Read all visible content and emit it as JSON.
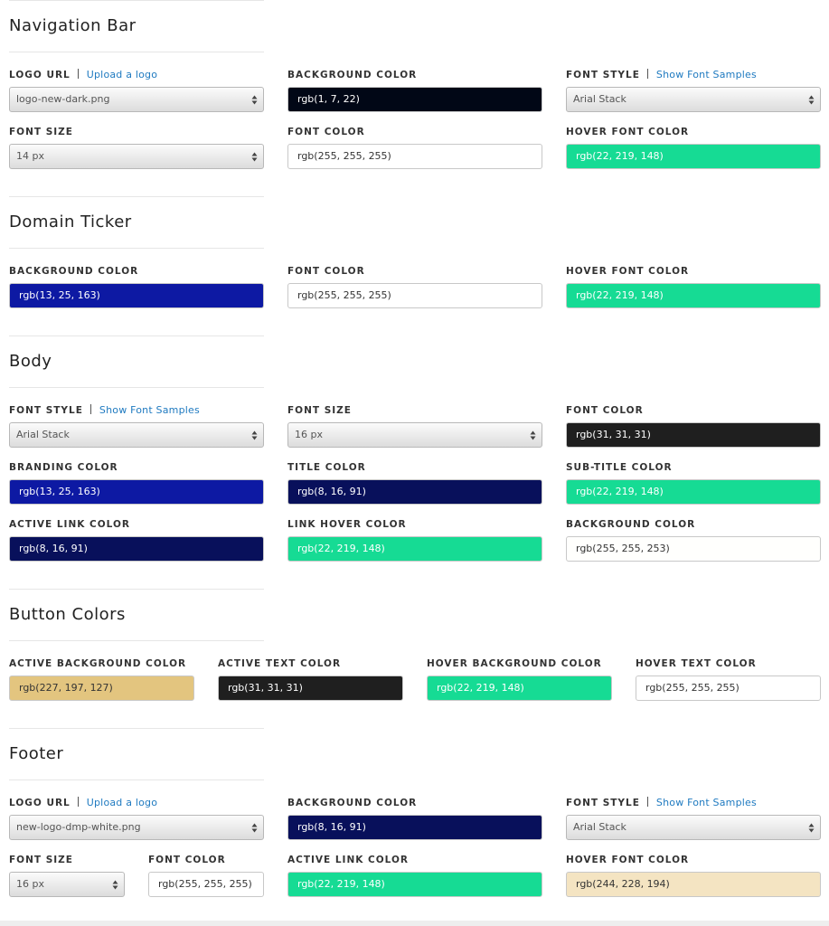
{
  "sections": [
    {
      "title": "Navigation Bar",
      "rows": [
        [
          {
            "label": "LOGO URL",
            "link": "Upload a logo",
            "type": "select",
            "value": "logo-new-dark.png"
          },
          {
            "label": "BACKGROUND COLOR",
            "type": "color",
            "value": "rgb(1, 7, 22)"
          },
          {
            "label": "FONT STYLE",
            "link": "Show Font Samples",
            "type": "select",
            "value": "Arial Stack"
          }
        ],
        [
          {
            "label": "FONT SIZE",
            "type": "select",
            "value": "14 px"
          },
          {
            "label": "FONT COLOR",
            "type": "color",
            "value": "rgb(255, 255, 255)"
          },
          {
            "label": "HOVER FONT COLOR",
            "type": "color",
            "value": "rgb(22, 219, 148)"
          }
        ]
      ]
    },
    {
      "title": "Domain Ticker",
      "rows": [
        [
          {
            "label": "BACKGROUND COLOR",
            "type": "color",
            "value": "rgb(13, 25, 163)"
          },
          {
            "label": "FONT COLOR",
            "type": "color",
            "value": "rgb(255, 255, 255)"
          },
          {
            "label": "HOVER FONT COLOR",
            "type": "color",
            "value": "rgb(22, 219, 148)"
          }
        ]
      ]
    },
    {
      "title": "Body",
      "rows": [
        [
          {
            "label": "FONT STYLE",
            "link": "Show Font Samples",
            "type": "select",
            "value": "Arial Stack"
          },
          {
            "label": "FONT SIZE",
            "type": "select",
            "value": "16 px"
          },
          {
            "label": "FONT COLOR",
            "type": "color",
            "value": "rgb(31, 31, 31)"
          }
        ],
        [
          {
            "label": "BRANDING COLOR",
            "type": "color",
            "value": "rgb(13, 25, 163)"
          },
          {
            "label": "TITLE COLOR",
            "type": "color",
            "value": "rgb(8, 16, 91)"
          },
          {
            "label": "SUB-TITLE COLOR",
            "type": "color",
            "value": "rgb(22, 219, 148)"
          }
        ],
        [
          {
            "label": "ACTIVE LINK COLOR",
            "type": "color",
            "value": "rgb(8, 16, 91)"
          },
          {
            "label": "LINK HOVER COLOR",
            "type": "color",
            "value": "rgb(22, 219, 148)"
          },
          {
            "label": "BACKGROUND COLOR",
            "type": "color",
            "value": "rgb(255, 255, 253)"
          }
        ]
      ]
    },
    {
      "title": "Button Colors",
      "rows": [
        [
          {
            "label": "ACTIVE BACKGROUND COLOR",
            "type": "color",
            "value": "rgb(227, 197, 127)"
          },
          {
            "label": "ACTIVE TEXT COLOR",
            "type": "color",
            "value": "rgb(31, 31, 31)"
          },
          {
            "label": "HOVER BACKGROUND COLOR",
            "type": "color",
            "value": "rgb(22, 219, 148)"
          },
          {
            "label": "HOVER TEXT COLOR",
            "type": "color",
            "value": "rgb(255, 255, 255)"
          }
        ]
      ]
    },
    {
      "title": "Footer",
      "rows": [
        [
          {
            "label": "LOGO URL",
            "link": "Upload a logo",
            "type": "select",
            "value": "new-logo-dmp-white.png"
          },
          {
            "label": "BACKGROUND COLOR",
            "type": "color",
            "value": "rgb(8, 16, 91)"
          },
          {
            "label": "FONT STYLE",
            "link": "Show Font Samples",
            "type": "select",
            "value": "Arial Stack"
          }
        ],
        [
          {
            "label": "FONT SIZE",
            "type": "select",
            "value": "16 px"
          },
          {
            "label": "FONT COLOR",
            "type": "color",
            "value": "rgb(255, 255, 255)"
          },
          {
            "label": "ACTIVE LINK COLOR",
            "type": "color",
            "value": "rgb(22, 219, 148)"
          },
          {
            "label": "HOVER FONT COLOR",
            "type": "color",
            "value": "rgb(244, 228, 194)"
          }
        ]
      ]
    }
  ]
}
